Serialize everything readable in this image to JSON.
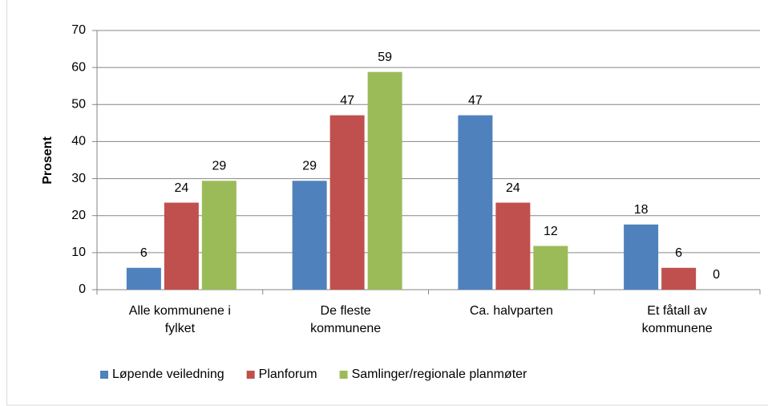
{
  "chart_data": {
    "type": "bar",
    "y_label": "Prosent",
    "categories": [
      "Alle kommunene i\nfylket",
      "De fleste\nkommunene",
      "Ca. halvparten",
      "Et fåtall av\nkommunene"
    ],
    "series": [
      {
        "name": "Løpende veiledning",
        "color": "#4f81bd",
        "values": [
          5.9,
          29.4,
          47.1,
          17.6
        ],
        "value_labels": [
          "6",
          "29",
          "47",
          "18"
        ]
      },
      {
        "name": "Planforum",
        "color": "#c0504d",
        "values": [
          23.5,
          47.1,
          23.5,
          5.9
        ],
        "value_labels": [
          "24",
          "47",
          "24",
          "6"
        ]
      },
      {
        "name": "Samlinger/regionale planmøter",
        "color": "#9bbb59",
        "values": [
          29.4,
          58.8,
          11.8,
          0
        ],
        "value_labels": [
          "29",
          "59",
          "12",
          "0"
        ]
      }
    ],
    "ylim": [
      0,
      70
    ],
    "yticks": [
      0,
      10,
      20,
      30,
      40,
      50,
      60,
      70
    ],
    "grid": true,
    "legend": "bottom"
  }
}
